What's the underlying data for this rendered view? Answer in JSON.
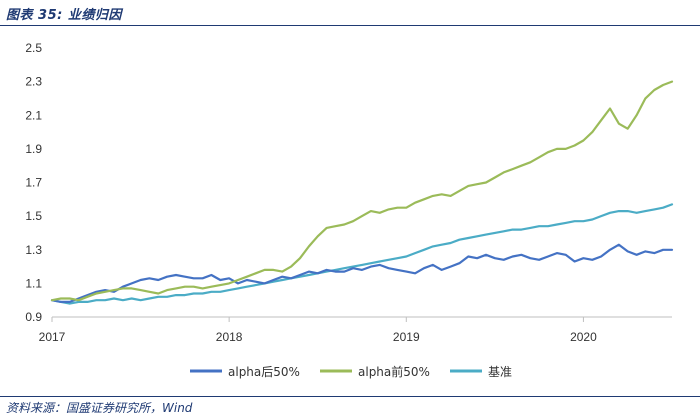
{
  "caption": {
    "title": "图表 35:  业绩归因"
  },
  "source": {
    "text": "资料来源：国盛证券研究所，Wind"
  },
  "chart_data": {
    "type": "line",
    "title": "业绩归因",
    "xlabel": "",
    "ylabel": "",
    "x_ticks": [
      "2017",
      "2018",
      "2019",
      "2020"
    ],
    "x_range": [
      2017.0,
      2020.5
    ],
    "ylim": [
      0.9,
      2.5
    ],
    "y_ticks": [
      "0.9",
      "1.1",
      "1.3",
      "1.5",
      "1.7",
      "1.9",
      "2.1",
      "2.3",
      "2.5"
    ],
    "grid": false,
    "legend_position": "bottom",
    "series": [
      {
        "name": "alpha后50%",
        "color": "#4472c4",
        "x": [
          2017.0,
          2017.05,
          2017.1,
          2017.15,
          2017.2,
          2017.25,
          2017.3,
          2017.35,
          2017.4,
          2017.45,
          2017.5,
          2017.55,
          2017.6,
          2017.65,
          2017.7,
          2017.75,
          2017.8,
          2017.85,
          2017.9,
          2017.95,
          2018.0,
          2018.05,
          2018.1,
          2018.15,
          2018.2,
          2018.25,
          2018.3,
          2018.35,
          2018.4,
          2018.45,
          2018.5,
          2018.55,
          2018.6,
          2018.65,
          2018.7,
          2018.75,
          2018.8,
          2018.85,
          2018.9,
          2018.95,
          2019.0,
          2019.05,
          2019.1,
          2019.15,
          2019.2,
          2019.25,
          2019.3,
          2019.35,
          2019.4,
          2019.45,
          2019.5,
          2019.55,
          2019.6,
          2019.65,
          2019.7,
          2019.75,
          2019.8,
          2019.85,
          2019.9,
          2019.95,
          2020.0,
          2020.05,
          2020.1,
          2020.15,
          2020.2,
          2020.25,
          2020.3,
          2020.35,
          2020.4,
          2020.45,
          2020.5
        ],
        "values": [
          1.0,
          0.99,
          0.99,
          1.01,
          1.03,
          1.05,
          1.06,
          1.05,
          1.08,
          1.1,
          1.12,
          1.13,
          1.12,
          1.14,
          1.15,
          1.14,
          1.13,
          1.13,
          1.15,
          1.12,
          1.13,
          1.1,
          1.12,
          1.11,
          1.1,
          1.12,
          1.14,
          1.13,
          1.15,
          1.17,
          1.16,
          1.18,
          1.17,
          1.17,
          1.19,
          1.18,
          1.2,
          1.21,
          1.19,
          1.18,
          1.17,
          1.16,
          1.19,
          1.21,
          1.18,
          1.2,
          1.22,
          1.26,
          1.25,
          1.27,
          1.25,
          1.24,
          1.26,
          1.27,
          1.25,
          1.24,
          1.26,
          1.28,
          1.27,
          1.23,
          1.25,
          1.24,
          1.26,
          1.3,
          1.33,
          1.29,
          1.27,
          1.29,
          1.28,
          1.3,
          1.3
        ]
      },
      {
        "name": "alpha前50%",
        "color": "#9bbb59",
        "x": [
          2017.0,
          2017.05,
          2017.1,
          2017.15,
          2017.2,
          2017.25,
          2017.3,
          2017.35,
          2017.4,
          2017.45,
          2017.5,
          2017.55,
          2017.6,
          2017.65,
          2017.7,
          2017.75,
          2017.8,
          2017.85,
          2017.9,
          2017.95,
          2018.0,
          2018.05,
          2018.1,
          2018.15,
          2018.2,
          2018.25,
          2018.3,
          2018.35,
          2018.4,
          2018.45,
          2018.5,
          2018.55,
          2018.6,
          2018.65,
          2018.7,
          2018.75,
          2018.8,
          2018.85,
          2018.9,
          2018.95,
          2019.0,
          2019.05,
          2019.1,
          2019.15,
          2019.2,
          2019.25,
          2019.3,
          2019.35,
          2019.4,
          2019.45,
          2019.5,
          2019.55,
          2019.6,
          2019.65,
          2019.7,
          2019.75,
          2019.8,
          2019.85,
          2019.9,
          2019.95,
          2020.0,
          2020.05,
          2020.1,
          2020.15,
          2020.2,
          2020.25,
          2020.3,
          2020.35,
          2020.4,
          2020.45,
          2020.5
        ],
        "values": [
          1.0,
          1.01,
          1.01,
          1.0,
          1.02,
          1.04,
          1.05,
          1.06,
          1.07,
          1.07,
          1.06,
          1.05,
          1.04,
          1.06,
          1.07,
          1.08,
          1.08,
          1.07,
          1.08,
          1.09,
          1.1,
          1.12,
          1.14,
          1.16,
          1.18,
          1.18,
          1.17,
          1.2,
          1.25,
          1.32,
          1.38,
          1.43,
          1.44,
          1.45,
          1.47,
          1.5,
          1.53,
          1.52,
          1.54,
          1.55,
          1.55,
          1.58,
          1.6,
          1.62,
          1.63,
          1.62,
          1.65,
          1.68,
          1.69,
          1.7,
          1.73,
          1.76,
          1.78,
          1.8,
          1.82,
          1.85,
          1.88,
          1.9,
          1.9,
          1.92,
          1.95,
          2.0,
          2.07,
          2.14,
          2.05,
          2.02,
          2.1,
          2.2,
          2.25,
          2.28,
          2.3
        ]
      },
      {
        "name": "基准",
        "color": "#4bacc6",
        "x": [
          2017.0,
          2017.05,
          2017.1,
          2017.15,
          2017.2,
          2017.25,
          2017.3,
          2017.35,
          2017.4,
          2017.45,
          2017.5,
          2017.55,
          2017.6,
          2017.65,
          2017.7,
          2017.75,
          2017.8,
          2017.85,
          2017.9,
          2017.95,
          2018.0,
          2018.05,
          2018.1,
          2018.15,
          2018.2,
          2018.25,
          2018.3,
          2018.35,
          2018.4,
          2018.45,
          2018.5,
          2018.55,
          2018.6,
          2018.65,
          2018.7,
          2018.75,
          2018.8,
          2018.85,
          2018.9,
          2018.95,
          2019.0,
          2019.05,
          2019.1,
          2019.15,
          2019.2,
          2019.25,
          2019.3,
          2019.35,
          2019.4,
          2019.45,
          2019.5,
          2019.55,
          2019.6,
          2019.65,
          2019.7,
          2019.75,
          2019.8,
          2019.85,
          2019.9,
          2019.95,
          2020.0,
          2020.05,
          2020.1,
          2020.15,
          2020.2,
          2020.25,
          2020.3,
          2020.35,
          2020.4,
          2020.45,
          2020.5
        ],
        "values": [
          1.0,
          0.99,
          0.98,
          0.99,
          0.99,
          1.0,
          1.0,
          1.01,
          1.0,
          1.01,
          1.0,
          1.01,
          1.02,
          1.02,
          1.03,
          1.03,
          1.04,
          1.04,
          1.05,
          1.05,
          1.06,
          1.07,
          1.08,
          1.09,
          1.1,
          1.11,
          1.12,
          1.13,
          1.14,
          1.15,
          1.16,
          1.17,
          1.18,
          1.19,
          1.2,
          1.21,
          1.22,
          1.23,
          1.24,
          1.25,
          1.26,
          1.28,
          1.3,
          1.32,
          1.33,
          1.34,
          1.36,
          1.37,
          1.38,
          1.39,
          1.4,
          1.41,
          1.42,
          1.42,
          1.43,
          1.44,
          1.44,
          1.45,
          1.46,
          1.47,
          1.47,
          1.48,
          1.5,
          1.52,
          1.53,
          1.53,
          1.52,
          1.53,
          1.54,
          1.55,
          1.57
        ]
      }
    ]
  }
}
